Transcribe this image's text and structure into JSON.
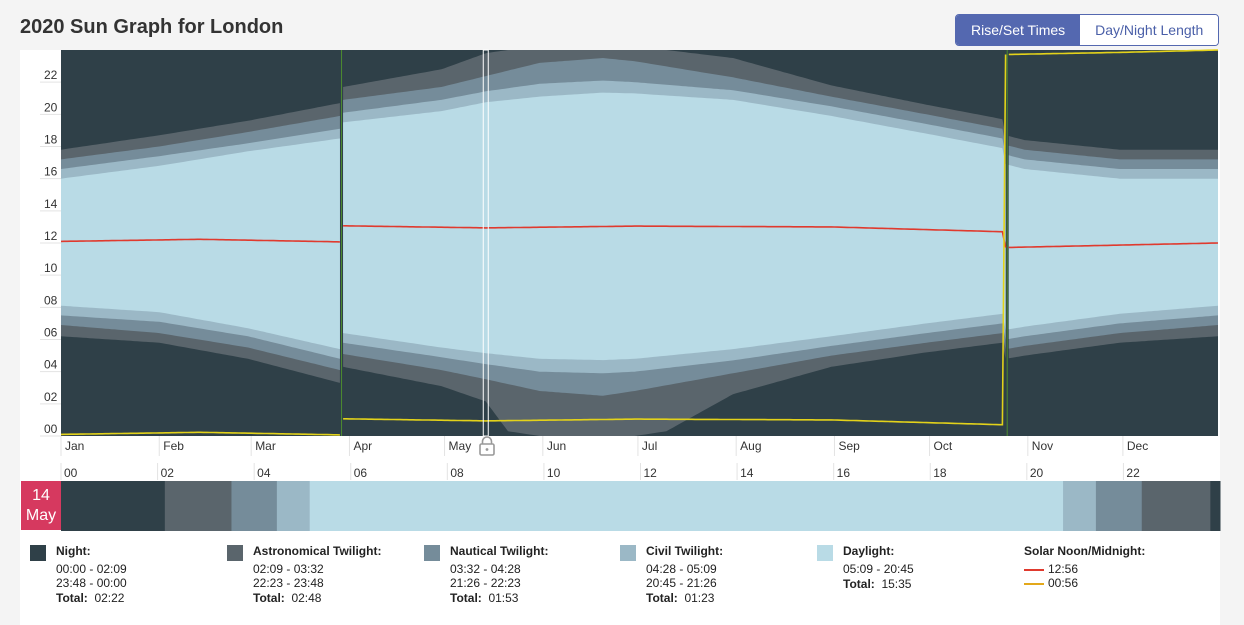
{
  "header": {
    "title": "2020 Sun Graph for London",
    "toggle": [
      {
        "label": "Rise/Set Times",
        "active": true
      },
      {
        "label": "Day/Night Length",
        "active": false
      }
    ]
  },
  "colors": {
    "night": "#2f4048",
    "astronomical": "#5a656c",
    "nautical": "#758c9a",
    "civil": "#9bb8c6",
    "daylight": "#b9dbe6",
    "noon": "#e03a2e",
    "midnight": "#e3d21a",
    "dst_marker": "#4c8a2f",
    "badge": "#d6395f"
  },
  "chart_data": [
    {
      "type": "area",
      "title": "",
      "xlabel": "",
      "ylabel": "",
      "ylim": [
        0,
        24
      ],
      "yticks": [
        "00",
        "02",
        "04",
        "06",
        "08",
        "10",
        "12",
        "14",
        "16",
        "18",
        "20",
        "22"
      ],
      "months": [
        "Jan",
        "Feb",
        "Mar",
        "Apr",
        "May",
        "Jun",
        "Jul",
        "Aug",
        "Sep",
        "Oct",
        "Nov",
        "Dec"
      ],
      "x_unit": "day of year 2020",
      "dst_start_day": 89,
      "dst_end_day": 299,
      "selected_day": 135,
      "grid": false,
      "series": [
        {
          "name": "Daylight",
          "x": [
            1,
            32,
            60,
            89,
            90,
            121,
            135,
            152,
            172,
            182,
            213,
            244,
            274,
            298,
            299,
            305,
            335,
            366
          ],
          "lower": [
            8.1,
            7.7,
            6.7,
            5.4,
            6.4,
            5.5,
            5.15,
            4.8,
            4.72,
            4.8,
            5.4,
            6.2,
            7.0,
            7.6,
            6.6,
            6.8,
            7.6,
            8.1
          ],
          "upper": [
            16.0,
            16.8,
            17.7,
            18.5,
            19.5,
            20.2,
            20.75,
            21.1,
            21.35,
            21.3,
            20.9,
            19.9,
            18.8,
            17.9,
            16.9,
            16.6,
            16.0,
            16.0
          ]
        },
        {
          "name": "Civil Twilight",
          "x": [
            1,
            32,
            60,
            89,
            90,
            121,
            135,
            152,
            172,
            182,
            213,
            244,
            274,
            298,
            299,
            305,
            335,
            366
          ],
          "lower": [
            7.5,
            7.1,
            6.2,
            4.8,
            5.8,
            4.9,
            4.47,
            4.0,
            3.9,
            4.0,
            4.7,
            5.6,
            6.4,
            7.0,
            6.0,
            6.2,
            7.0,
            7.5
          ],
          "upper": [
            16.6,
            17.4,
            18.2,
            19.1,
            20.1,
            20.9,
            21.43,
            21.9,
            22.1,
            22.0,
            21.5,
            20.5,
            19.4,
            18.5,
            17.5,
            17.2,
            16.6,
            16.6
          ]
        },
        {
          "name": "Nautical Twilight",
          "x": [
            1,
            32,
            60,
            89,
            90,
            121,
            135,
            152,
            172,
            182,
            213,
            244,
            274,
            298,
            299,
            305,
            335,
            366
          ],
          "lower": [
            6.9,
            6.4,
            5.5,
            4.1,
            5.1,
            4.1,
            3.53,
            2.8,
            2.5,
            2.8,
            3.9,
            5.0,
            5.8,
            6.4,
            5.4,
            5.6,
            6.4,
            6.9
          ],
          "upper": [
            17.2,
            18.0,
            18.9,
            19.9,
            20.9,
            21.7,
            22.38,
            23.2,
            23.5,
            23.3,
            22.3,
            21.1,
            20.0,
            19.1,
            18.1,
            17.8,
            17.2,
            17.2
          ]
        },
        {
          "name": "Astronomical Twilight",
          "x": [
            1,
            32,
            60,
            89,
            90,
            121,
            135,
            142,
            152,
            172,
            182,
            192,
            213,
            244,
            274,
            298,
            299,
            305,
            335,
            366
          ],
          "lower": [
            6.2,
            5.8,
            4.8,
            3.3,
            4.3,
            3.1,
            2.15,
            0.3,
            0,
            0,
            0,
            0.3,
            2.6,
            4.3,
            5.2,
            5.8,
            4.8,
            5.0,
            5.8,
            6.2
          ],
          "upper": [
            17.8,
            18.7,
            19.6,
            20.7,
            21.7,
            22.8,
            23.8,
            24,
            24,
            24,
            24,
            24,
            23.5,
            21.8,
            20.6,
            19.7,
            18.7,
            18.4,
            17.8,
            17.8
          ]
        }
      ],
      "lines": [
        {
          "name": "Solar Noon",
          "x": [
            1,
            45,
            89,
            90,
            135,
            182,
            244,
            298,
            299,
            366
          ],
          "y": [
            12.1,
            12.23,
            12.07,
            13.07,
            12.94,
            13.05,
            13.0,
            12.7,
            11.72,
            12.0
          ]
        },
        {
          "name": "Solar Midnight",
          "x": [
            1,
            45,
            89,
            90,
            135,
            182,
            244,
            298,
            299,
            335,
            366
          ],
          "y": [
            0.1,
            0.23,
            0.07,
            1.07,
            0.94,
            1.05,
            1.0,
            0.7,
            23.72,
            23.85,
            24.0
          ]
        }
      ]
    },
    {
      "type": "bar",
      "title": "",
      "xlabel": "",
      "ylabel": "",
      "xlim": [
        0,
        24
      ],
      "xticks": [
        "00",
        "02",
        "04",
        "06",
        "08",
        "10",
        "12",
        "14",
        "16",
        "18",
        "20",
        "22"
      ],
      "categories": [
        "Night",
        "Astronomical Twilight",
        "Nautical Twilight",
        "Civil Twilight",
        "Daylight",
        "Civil Twilight",
        "Nautical Twilight",
        "Astronomical Twilight",
        "Night"
      ],
      "segments": [
        {
          "phase": "night",
          "start": 0.0,
          "end": 2.15
        },
        {
          "phase": "astronomical",
          "start": 2.15,
          "end": 3.53
        },
        {
          "phase": "nautical",
          "start": 3.53,
          "end": 4.47
        },
        {
          "phase": "civil",
          "start": 4.47,
          "end": 5.15
        },
        {
          "phase": "daylight",
          "start": 5.15,
          "end": 20.75
        },
        {
          "phase": "civil",
          "start": 20.75,
          "end": 21.43
        },
        {
          "phase": "nautical",
          "start": 21.43,
          "end": 22.38
        },
        {
          "phase": "astronomical",
          "start": 22.38,
          "end": 23.8
        },
        {
          "phase": "night",
          "start": 23.8,
          "end": 24.0
        }
      ]
    }
  ],
  "selected_date": {
    "day": "14",
    "month": "May"
  },
  "legend": {
    "total_label": "Total:",
    "items": [
      {
        "phase": "night",
        "title": "Night:",
        "rows": [
          "00:00 - 02:09",
          "23:48 - 00:00"
        ],
        "total": "02:22"
      },
      {
        "phase": "astronomical",
        "title": "Astronomical Twilight:",
        "rows": [
          "02:09 - 03:32",
          "22:23 - 23:48"
        ],
        "total": "02:48"
      },
      {
        "phase": "nautical",
        "title": "Nautical Twilight:",
        "rows": [
          "03:32 - 04:28",
          "21:26 - 22:23"
        ],
        "total": "01:53"
      },
      {
        "phase": "civil",
        "title": "Civil Twilight:",
        "rows": [
          "04:28 - 05:09",
          "20:45 - 21:26"
        ],
        "total": "01:23"
      },
      {
        "phase": "daylight",
        "title": "Daylight:",
        "rows": [
          "05:09 - 20:45"
        ],
        "total": "15:35"
      }
    ],
    "solar": {
      "title": "Solar Noon/Midnight:",
      "noon": "12:56",
      "midnight": "00:56"
    }
  }
}
